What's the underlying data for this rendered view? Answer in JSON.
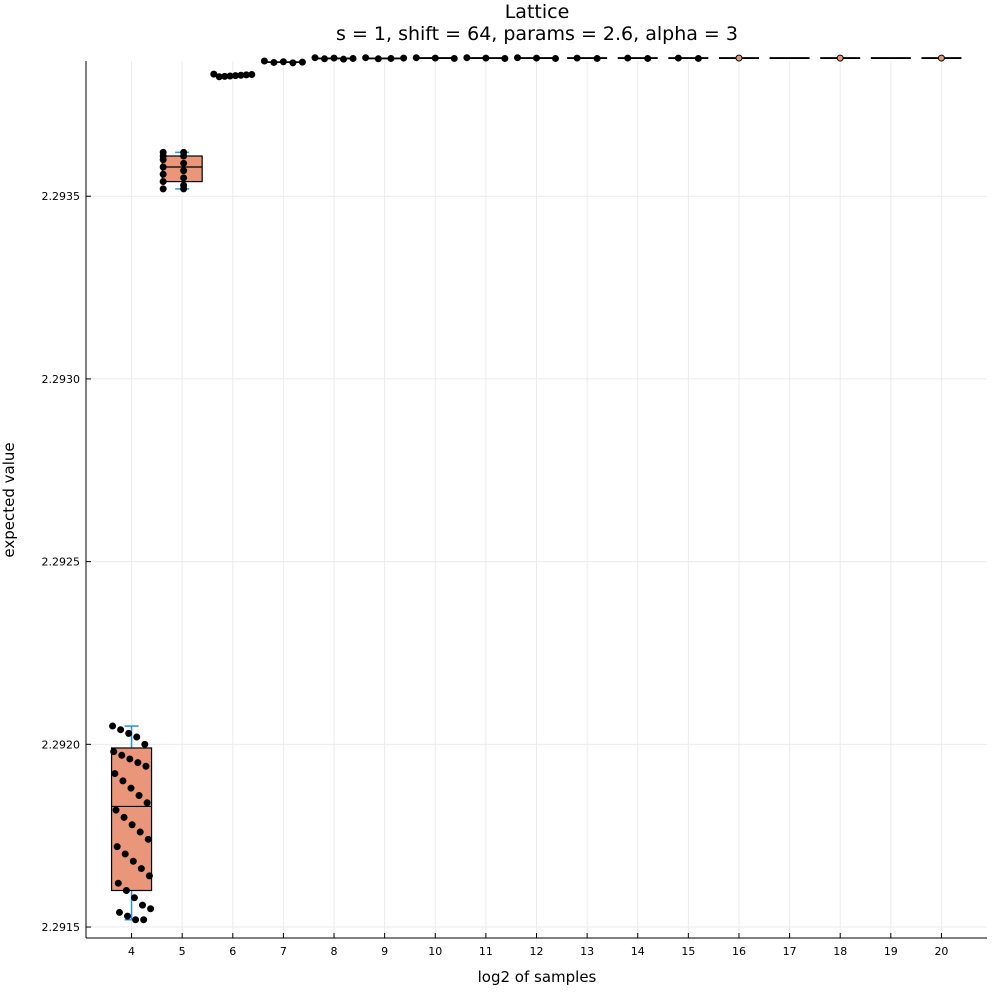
{
  "chart_data": {
    "type": "box",
    "title": "Lattice",
    "subtitle": "s = 1, shift = 64, params = 2.6, alpha = 3",
    "xlabel": "log2 of samples",
    "ylabel": "expected value",
    "x_ticks": [
      "4",
      "5",
      "6",
      "7",
      "8",
      "9",
      "10",
      "11",
      "12",
      "13",
      "14",
      "15",
      "16",
      "17",
      "18",
      "19",
      "20"
    ],
    "y_ticks": [
      "2.2915",
      "2.2920",
      "2.2925",
      "2.2930",
      "2.2935"
    ],
    "y_tick_values": [
      2.2915,
      2.292,
      2.2925,
      2.293,
      2.2935
    ],
    "ylim": [
      2.29147,
      2.29387
    ],
    "xlim": [
      3.1,
      20.9
    ],
    "grid": true,
    "legend": "none",
    "box_color": "#E9967A",
    "point_color": "#000000",
    "whisker_color": "#1E90FF",
    "groups": [
      {
        "x": 4,
        "min": 2.29152,
        "q1": 2.2916,
        "median": 2.29183,
        "q3": 2.29199,
        "max": 2.29205,
        "spread": "wide",
        "points": [
          2.29205,
          2.29204,
          2.29203,
          2.29202,
          2.292,
          2.29198,
          2.29197,
          2.29196,
          2.29195,
          2.29194,
          2.29192,
          2.2919,
          2.29188,
          2.29186,
          2.29184,
          2.29182,
          2.2918,
          2.29178,
          2.29176,
          2.29174,
          2.29172,
          2.2917,
          2.29168,
          2.29166,
          2.29164,
          2.29162,
          2.2916,
          2.29158,
          2.29156,
          2.29155,
          2.29154,
          2.29153,
          2.29152,
          2.29152
        ]
      },
      {
        "x": 5,
        "min": 2.29352,
        "q1": 2.29354,
        "median": 2.29358,
        "q3": 2.29361,
        "max": 2.29362,
        "spread": "wide",
        "points": [
          2.29362,
          2.29362,
          2.29361,
          2.29361,
          2.2936,
          2.29359,
          2.29358,
          2.29357,
          2.29356,
          2.29355,
          2.29354,
          2.29353,
          2.29352,
          2.29352
        ]
      },
      {
        "x": 6,
        "min": 2.293827,
        "q1": 2.293828,
        "median": 2.29383,
        "q3": 2.293832,
        "max": 2.293834,
        "spread": "wide",
        "points": [
          2.293834,
          2.293833,
          2.293832,
          2.293831,
          2.29383,
          2.293829,
          2.293828,
          2.293827
        ]
      },
      {
        "x": 7,
        "min": 2.293865,
        "q1": 2.293866,
        "median": 2.293867,
        "q3": 2.293868,
        "max": 2.29387,
        "spread": "wide",
        "points": [
          2.29387,
          2.293868,
          2.293867,
          2.293866,
          2.293865
        ]
      },
      {
        "x": 8,
        "min": 2.293875,
        "q1": 2.293876,
        "median": 2.293877,
        "q3": 2.293878,
        "max": 2.293879,
        "spread": "wide",
        "points": [
          2.293879,
          2.293878,
          2.293877,
          2.293876,
          2.293875
        ]
      },
      {
        "x": 9,
        "min": 2.293876,
        "q1": 2.293877,
        "median": 2.293877,
        "q3": 2.293878,
        "max": 2.293879,
        "spread": "wide",
        "points": [
          2.293879,
          2.293878,
          2.293877,
          2.293876
        ]
      },
      {
        "x": 10,
        "min": 2.293877,
        "q1": 2.293877,
        "median": 2.293878,
        "q3": 2.293878,
        "max": 2.293879,
        "spread": "wide",
        "points": [
          2.293879,
          2.293878,
          2.293877
        ]
      },
      {
        "x": 11,
        "min": 2.293877,
        "q1": 2.293877,
        "median": 2.293878,
        "q3": 2.293878,
        "max": 2.293879,
        "spread": "wide",
        "points": [
          2.293879,
          2.293878,
          2.293877
        ]
      },
      {
        "x": 12,
        "min": 2.293877,
        "q1": 2.293877,
        "median": 2.293878,
        "q3": 2.293878,
        "max": 2.293879,
        "spread": "wide",
        "points": [
          2.293879,
          2.293878,
          2.293877
        ]
      },
      {
        "x": 13,
        "min": 2.293877,
        "q1": 2.293877,
        "median": 2.293878,
        "q3": 2.293878,
        "max": 2.293878,
        "spread": "mid",
        "points": [
          2.293878,
          2.293877
        ]
      },
      {
        "x": 14,
        "min": 2.293877,
        "q1": 2.293877,
        "median": 2.293878,
        "q3": 2.293878,
        "max": 2.293878,
        "spread": "mid",
        "points": [
          2.293878,
          2.293877
        ]
      },
      {
        "x": 15,
        "min": 2.293877,
        "q1": 2.293877,
        "median": 2.293878,
        "q3": 2.293878,
        "max": 2.293878,
        "spread": "mid",
        "points": [
          2.293878,
          2.293877
        ]
      },
      {
        "x": 16,
        "min": 2.293878,
        "q1": 2.293878,
        "median": 2.293878,
        "q3": 2.293878,
        "max": 2.293878,
        "spread": "single",
        "points": [
          2.293878
        ]
      },
      {
        "x": 17,
        "min": 2.293878,
        "q1": 2.293878,
        "median": 2.293878,
        "q3": 2.293878,
        "max": 2.293878,
        "spread": "none",
        "points": []
      },
      {
        "x": 18,
        "min": 2.293878,
        "q1": 2.293878,
        "median": 2.293878,
        "q3": 2.293878,
        "max": 2.293878,
        "spread": "single",
        "points": [
          2.293878
        ]
      },
      {
        "x": 19,
        "min": 2.293878,
        "q1": 2.293878,
        "median": 2.293878,
        "q3": 2.293878,
        "max": 2.293878,
        "spread": "none",
        "points": []
      },
      {
        "x": 20,
        "min": 2.293878,
        "q1": 2.293878,
        "median": 2.293878,
        "q3": 2.293878,
        "max": 2.293878,
        "spread": "single",
        "points": [
          2.293878
        ]
      }
    ]
  }
}
